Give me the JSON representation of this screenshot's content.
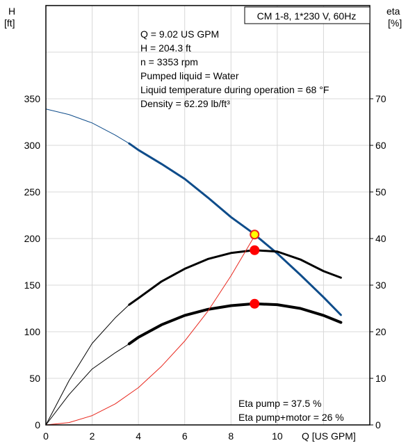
{
  "chart_data": {
    "type": "line",
    "title": "CM 1-8, 1*230 V, 60Hz",
    "x_axis": {
      "label": "Q [US GPM]",
      "range": [
        0,
        14
      ],
      "ticks": [
        0,
        2,
        4,
        6,
        8,
        10
      ]
    },
    "y_axis_left": {
      "label_top": "H",
      "label_bottom": "[ft]",
      "range": [
        0,
        450
      ],
      "ticks": [
        0,
        50,
        100,
        150,
        200,
        250,
        300,
        350
      ]
    },
    "y_axis_right": {
      "label_top": "eta",
      "label_bottom": "[%]",
      "range": [
        0,
        90
      ],
      "ticks": [
        0,
        10,
        20,
        30,
        40,
        50,
        60,
        70
      ]
    },
    "grid": true,
    "info_lines": [
      "Q = 9.02 US GPM",
      "H = 204.3 ft",
      "n = 3353 rpm",
      "Pumped liquid = Water",
      "Liquid temperature during operation = 68 °F",
      "Density = 62.29 lb/ft³"
    ],
    "efficiency_lines": [
      "Eta pump = 37.5 %",
      "Eta pump+motor = 26 %"
    ],
    "series": [
      {
        "axis": "left",
        "color": "#0e4c8a",
        "x": [
          0,
          1,
          2,
          3,
          3.6,
          4,
          5,
          6,
          7,
          8,
          9,
          9.02,
          10,
          11,
          12,
          12.75
        ],
        "y": [
          339,
          333,
          324,
          311,
          302,
          295,
          280,
          264,
          244,
          223,
          205,
          204.3,
          184,
          161,
          137,
          118
        ],
        "bold_from_x": 3.6
      },
      {
        "axis": "right",
        "color": "#000000",
        "x": [
          0,
          1,
          2,
          3,
          3.6,
          4,
          5,
          6,
          7,
          8,
          9,
          10,
          11,
          12,
          12.75
        ],
        "y": [
          0,
          9.5,
          17.5,
          23.0,
          25.8,
          27.2,
          30.8,
          33.5,
          35.6,
          36.9,
          37.5,
          37.2,
          35.5,
          33.0,
          31.6
        ],
        "bold_from_x": 3.6
      },
      {
        "axis": "right",
        "color": "#000000",
        "x": [
          0,
          1,
          2,
          3,
          3.6,
          4,
          5,
          6,
          7,
          8,
          9,
          10,
          11,
          12,
          12.75
        ],
        "y": [
          0,
          6.5,
          12.0,
          15.5,
          17.4,
          18.8,
          21.5,
          23.5,
          24.8,
          25.6,
          26.0,
          25.8,
          25.0,
          23.5,
          22.0
        ],
        "bold_from_x": 3.6,
        "bold_width": 4
      },
      {
        "axis": "left",
        "color": "#e8261c",
        "x": [
          0,
          1,
          2,
          3,
          4,
          5,
          6,
          7,
          8,
          9,
          9.02
        ],
        "y": [
          0,
          2.5,
          10,
          22.6,
          40,
          63,
          90,
          122,
          160,
          202,
          204.3
        ]
      }
    ],
    "points": [
      {
        "axis": "left",
        "x": 9.02,
        "y": 204.3,
        "fill": "#ffff00",
        "stroke": "#e8261c",
        "r": 6
      },
      {
        "axis": "right",
        "x": 9.02,
        "y": 37.5,
        "fill": "#ff0000",
        "stroke": "#ff0000",
        "r": 6
      },
      {
        "axis": "right",
        "x": 9.02,
        "y": 26,
        "fill": "#ff0000",
        "stroke": "#ff0000",
        "r": 6
      }
    ]
  }
}
